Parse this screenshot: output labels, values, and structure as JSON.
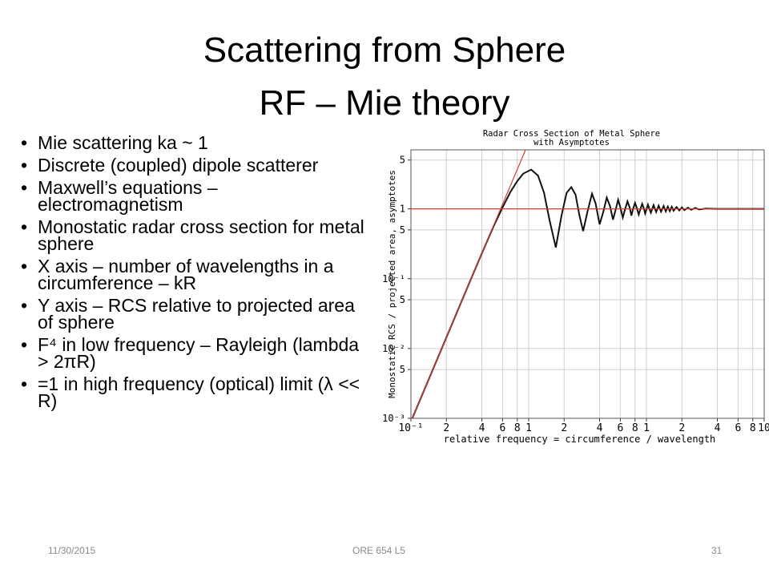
{
  "title": [
    "Scattering from Sphere",
    "RF – Mie theory"
  ],
  "bullets": [
    "Mie scattering ka ~ 1",
    "Discrete (coupled) dipole scatterer",
    "Maxwell’s equations – electromagnetism",
    "Monostatic radar cross section for metal sphere",
    "X axis – number of wavelengths in a circumference – kR",
    "Y axis – RCS relative to projected area of sphere",
    "F⁴ in low frequency – Rayleigh (lambda > 2πR)",
    "=1 in high frequency (optical) limit (λ << R)"
  ],
  "footer": {
    "date": "11/30/2015",
    "center": "ORE 654 L5",
    "page": "31"
  },
  "chart_data": {
    "type": "line",
    "title": [
      "Radar Cross Section of Metal Sphere",
      "with Asymptotes"
    ],
    "xlabel": "relative frequency = circumference / wavelength",
    "ylabel": "Monostatic RCS / projected area, asymptotes",
    "xscale": "log",
    "yscale": "log",
    "grid": true,
    "xlim": [
      0.1,
      100
    ],
    "ylim": [
      0.001,
      7
    ],
    "xticks": [
      {
        "value": 0.1,
        "label": "10⁻¹"
      },
      {
        "value": 0.2,
        "label": "2"
      },
      {
        "value": 0.4,
        "label": "4"
      },
      {
        "value": 0.6,
        "label": "6"
      },
      {
        "value": 0.8,
        "label": "8"
      },
      1,
      2,
      4,
      6,
      8,
      {
        "value": 10,
        "label": "1"
      },
      {
        "value": 20,
        "label": "2"
      },
      {
        "value": 40,
        "label": "4"
      },
      {
        "value": 60,
        "label": "6"
      },
      {
        "value": 80,
        "label": "8"
      },
      {
        "value": 100,
        "label": "10"
      }
    ],
    "yticks": [
      {
        "value": 0.001,
        "label": "10⁻³"
      },
      {
        "value": 0.005,
        "label": "5"
      },
      {
        "value": 0.01,
        "label": "10⁻²"
      },
      {
        "value": 0.05,
        "label": "5"
      },
      {
        "value": 0.1,
        "label": "10⁻¹"
      },
      {
        "value": 0.5,
        "label": "5"
      },
      1,
      5
    ],
    "series": [
      {
        "color": "#111111",
        "x": [
          0.1,
          0.2,
          0.3,
          0.4,
          0.5,
          0.6,
          0.7,
          0.8,
          0.9,
          1.05,
          1.2,
          1.35,
          1.5,
          1.7,
          1.9,
          2.1,
          2.3,
          2.5,
          2.7,
          2.9,
          3.15,
          3.45,
          3.7,
          4.0,
          4.3,
          4.6,
          4.9,
          5.2,
          5.5,
          5.75,
          6.0,
          6.3,
          6.6,
          6.9,
          7.2,
          7.45,
          7.7,
          8.0,
          8.3,
          8.6,
          8.9,
          9.2,
          9.5,
          9.75,
          10.3,
          10.9,
          11.5,
          12.1,
          12.7,
          13.3,
          14,
          14.6,
          15.2,
          15.8,
          16.4,
          17,
          18,
          19,
          20,
          21,
          22.5,
          24,
          26,
          28,
          32,
          40,
          60,
          100
        ],
        "values": [
          0.0009,
          0.0144,
          0.073,
          0.23,
          0.55,
          1.05,
          1.75,
          2.5,
          3.2,
          3.65,
          3.0,
          1.7,
          0.7,
          0.28,
          0.8,
          1.7,
          2.05,
          1.6,
          0.8,
          0.48,
          0.9,
          1.65,
          1.2,
          0.6,
          0.9,
          1.45,
          1.1,
          0.7,
          1.0,
          1.35,
          1.05,
          0.75,
          1.0,
          1.28,
          1.05,
          0.8,
          1.0,
          1.22,
          1.02,
          0.83,
          1.0,
          1.18,
          1.02,
          0.86,
          1.15,
          0.88,
          1.13,
          0.9,
          1.11,
          0.91,
          1.1,
          0.92,
          1.08,
          0.93,
          1.07,
          0.94,
          1.06,
          0.95,
          1.05,
          0.96,
          1.04,
          0.97,
          1.03,
          0.98,
          1.01,
          1.0,
          1.0,
          1.0
        ]
      },
      {
        "color": "#d04030",
        "x": [
          0.1,
          0.94
        ],
        "values": [
          0.0009,
          7
        ]
      },
      {
        "color": "#d04030",
        "x": [
          0.1,
          100
        ],
        "values": [
          1,
          1
        ]
      }
    ]
  }
}
